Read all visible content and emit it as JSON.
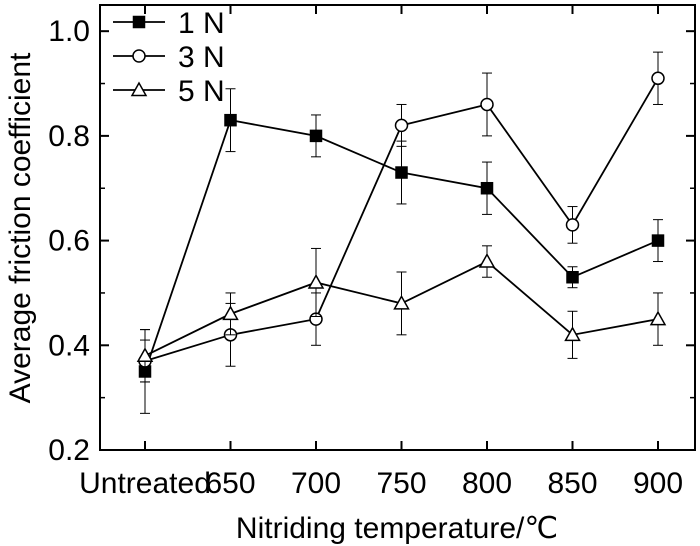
{
  "chart_data": {
    "type": "line",
    "title": "",
    "xlabel": "Nitriding temperature/℃",
    "ylabel": "Average friction coefficient",
    "categories": [
      "Untreated",
      "650",
      "700",
      "750",
      "800",
      "850",
      "900"
    ],
    "ylim": [
      0.2,
      1.05
    ],
    "yticks": [
      "0.2",
      "0.4",
      "0.6",
      "0.8",
      "1.0"
    ],
    "ytick_values": [
      0.2,
      0.4,
      0.6,
      0.8,
      1.0
    ],
    "grid": false,
    "legend_position": "top-left",
    "series": [
      {
        "name": "1 N",
        "marker": "filled-square",
        "values": [
          0.35,
          0.83,
          0.8,
          0.73,
          0.7,
          0.53,
          0.6
        ],
        "errors": [
          0.08,
          0.06,
          0.04,
          0.06,
          0.05,
          0.02,
          0.04
        ]
      },
      {
        "name": "3 N",
        "marker": "open-circle",
        "values": [
          0.37,
          0.42,
          0.45,
          0.82,
          0.86,
          0.63,
          0.91
        ],
        "errors": [
          0.04,
          0.06,
          0.05,
          0.04,
          0.06,
          0.035,
          0.05
        ]
      },
      {
        "name": "5 N",
        "marker": "open-triangle",
        "values": [
          0.38,
          0.46,
          0.52,
          0.48,
          0.56,
          0.42,
          0.45
        ],
        "errors": [
          0.05,
          0.04,
          0.065,
          0.06,
          0.03,
          0.045,
          0.05
        ]
      }
    ],
    "colors": {
      "line": "#000000",
      "marker_fill_open": "#ffffff",
      "marker_fill_filled": "#000000"
    }
  }
}
